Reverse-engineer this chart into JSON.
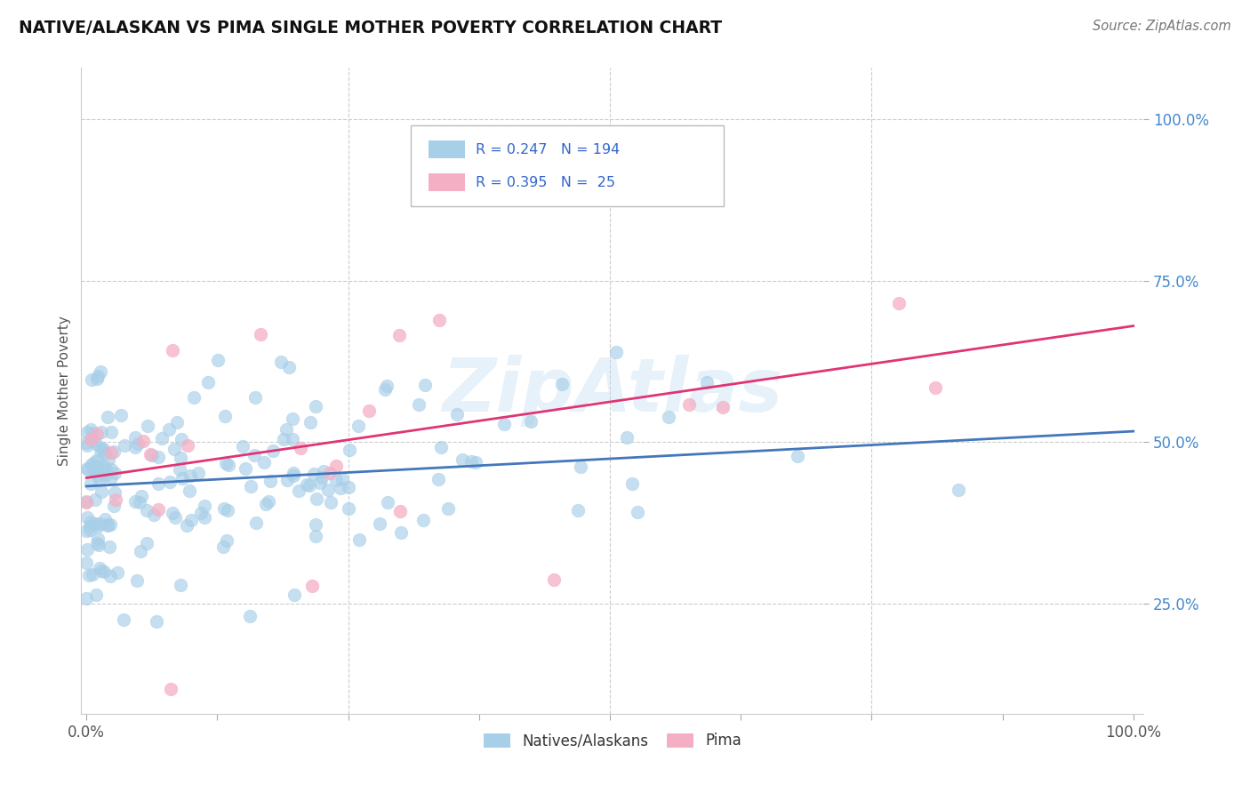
{
  "title": "NATIVE/ALASKAN VS PIMA SINGLE MOTHER POVERTY CORRELATION CHART",
  "source": "Source: ZipAtlas.com",
  "ylabel": "Single Mother Poverty",
  "legend_label1": "Natives/Alaskans",
  "legend_label2": "Pima",
  "r1_text": "R = 0.247",
  "n1_text": "N = 194",
  "r2_text": "R = 0.395",
  "n2_text": "N =  25",
  "color_blue": "#a8cfe8",
  "color_pink": "#f5afc5",
  "line_blue": "#4477bb",
  "line_pink": "#e03575",
  "background": "#ffffff",
  "watermark": "ZipAtlas",
  "watermark_color": "#b8d8ee",
  "grid_color": "#cccccc",
  "title_color": "#111111",
  "source_color": "#777777",
  "tick_color_right": "#4488cc",
  "legend_value_color": "#3366cc",
  "xlim": [
    -0.005,
    1.01
  ],
  "ylim": [
    0.08,
    1.08
  ],
  "right_ytick_labels": [
    "25.0%",
    "50.0%",
    "75.0%",
    "100.0%"
  ],
  "right_ytick_vals": [
    0.25,
    0.5,
    0.75,
    1.0
  ],
  "blue_line_start_y": 0.432,
  "blue_line_end_y": 0.517,
  "pink_line_start_y": 0.445,
  "pink_line_end_y": 0.68
}
